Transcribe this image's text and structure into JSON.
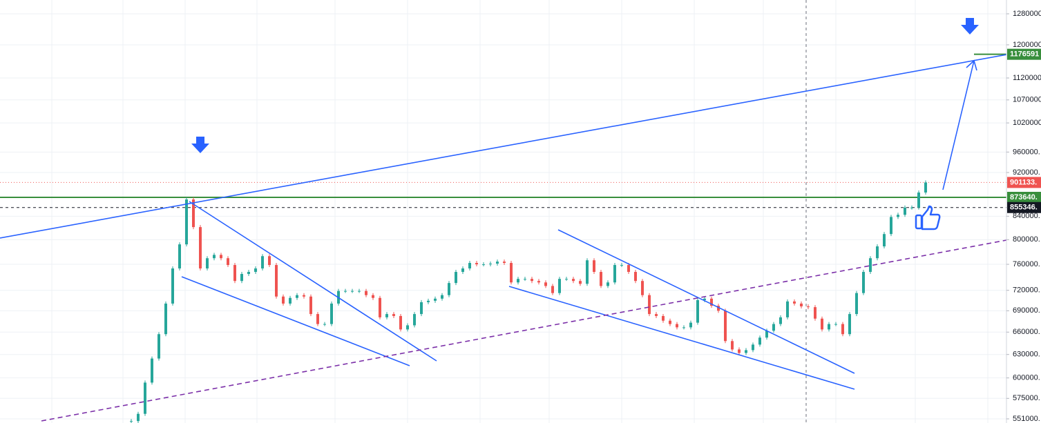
{
  "chart_data": {
    "type": "candlestick",
    "log_scale": true,
    "grid": true,
    "colors": {
      "up": "#26a69a",
      "down": "#ef5350"
    },
    "values": [
      548500,
      556800,
      594200,
      624700,
      657200,
      700400,
      753500,
      792200,
      869800,
      821200,
      753500,
      769700,
      775100,
      769700,
      758900,
      734100,
      744900,
      748100,
      753500,
      773000,
      758900,
      710700,
      700400,
      708700,
      712800,
      710700,
      685300,
      671200,
      671200,
      700400,
      719000,
      719000,
      719000,
      719000,
      712800,
      708700,
      680600,
      685300,
      682500,
      663700,
      669400,
      685300,
      702400,
      704500,
      707600,
      712800,
      731000,
      748100,
      753500,
      762200,
      760000,
      760000,
      761100,
      764300,
      762200,
      731900,
      737300,
      737300,
      734100,
      731900,
      726500,
      715900,
      737300,
      737300,
      734100,
      729800,
      766400,
      748100,
      726500,
      731900,
      758900,
      758900,
      748100,
      734100,
      712800,
      685300,
      682500,
      675900,
      671200,
      666600,
      666600,
      673100,
      705500,
      707600,
      697200,
      690000,
      647800,
      636600,
      632000,
      635700,
      643100,
      652500,
      661900,
      671200,
      680600,
      703500,
      700400,
      696300,
      695200,
      678800,
      663700,
      671200,
      671200,
      657200,
      685300,
      715900,
      748100,
      769700,
      788900,
      809400,
      838700,
      842500,
      855300,
      855300,
      882500,
      901133
    ],
    "ylim": [
      551000,
      1280000
    ],
    "yticks": [
      1280000,
      1200000,
      1120000,
      1070000,
      1020000,
      {
        "value": 960000,
        "label": "960000."
      },
      {
        "value": 920000,
        "label": "920000."
      },
      {
        "value": 840000,
        "label": "840000."
      },
      {
        "value": 800000,
        "label": "800000."
      },
      {
        "value": 760000,
        "label": "760000."
      },
      {
        "value": 720000,
        "label": "720000."
      },
      {
        "value": 690000,
        "label": "690000."
      },
      {
        "value": 660000,
        "label": "660000."
      },
      {
        "value": 630000,
        "label": "630000."
      },
      {
        "value": 600000,
        "label": "600000."
      },
      {
        "value": 575000,
        "label": "575000."
      },
      {
        "value": 551000,
        "label": "551000."
      }
    ],
    "price_lines": [
      {
        "value": 1176591,
        "label": "1176591",
        "color": "#388e3c"
      },
      {
        "value": 901133,
        "label": "901133.",
        "color": "#ef5350"
      },
      {
        "value": 873640,
        "label": "873640.",
        "color": "#388e3c"
      },
      {
        "value": 855346,
        "label": "855346.",
        "color": "#131722"
      }
    ]
  }
}
